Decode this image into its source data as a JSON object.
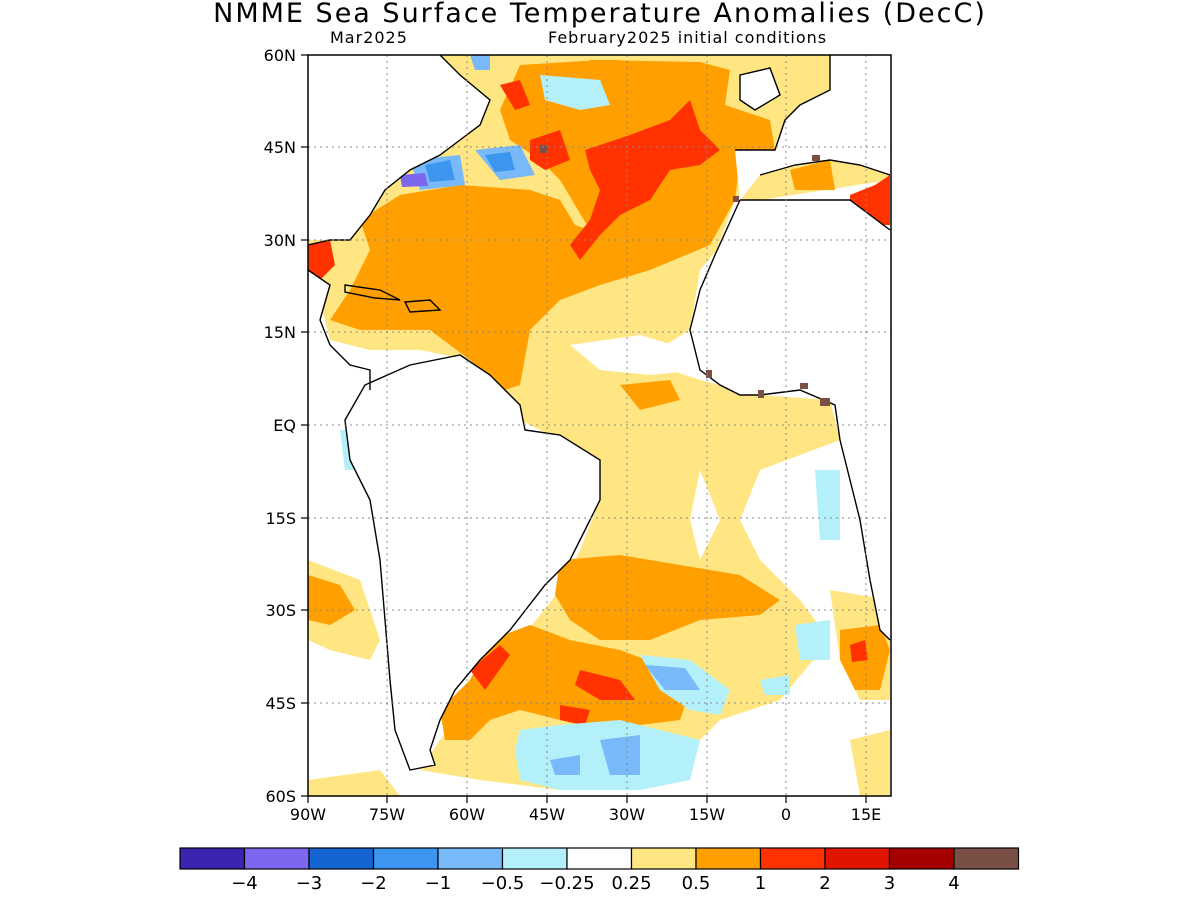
{
  "title": "NMME Sea Surface Temperature Anomalies (DecC)",
  "subtitle_left": "Mar2025",
  "subtitle_right": "February2025 initial conditions",
  "lat_labels": [
    "60N",
    "45N",
    "30N",
    "15N",
    "EQ",
    "15S",
    "30S",
    "45S",
    "60S"
  ],
  "lon_labels": [
    "90W",
    "75W",
    "60W",
    "45W",
    "30W",
    "15W",
    "0",
    "15E"
  ],
  "colorbar": {
    "colors": [
      "#3a24b0",
      "#7b68ee",
      "#1464d2",
      "#3c96f0",
      "#78b9fa",
      "#b4f0fa",
      "#ffffff",
      "#ffe682",
      "#ffa000",
      "#ff3200",
      "#e11400",
      "#a50000",
      "#7a4f45"
    ],
    "labels": [
      "−4",
      "−3",
      "−2",
      "−1",
      "−0.5",
      "−0.25",
      "0.25",
      "0.5",
      "1",
      "2",
      "3",
      "4"
    ]
  },
  "land_marker_color": "#7a4f45"
}
